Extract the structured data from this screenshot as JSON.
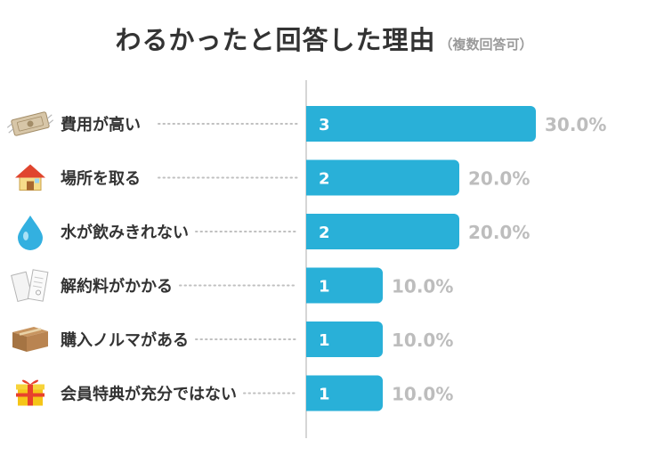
{
  "chart_data": {
    "type": "bar",
    "orientation": "horizontal",
    "title": "わるかったと回答した理由",
    "subtitle": "（複数回答可）",
    "categories": [
      "費用が高い",
      "場所を取る",
      "水が飲みきれない",
      "解約料がかかる",
      "購入ノルマがある",
      "会員特典が充分ではない"
    ],
    "values": [
      3,
      2,
      2,
      1,
      1,
      1
    ],
    "percent_labels": [
      "30.0%",
      "20.0%",
      "20.0%",
      "10.0%",
      "10.0%",
      "10.0%"
    ],
    "icons": [
      "money-icon",
      "house-icon",
      "water-drop-icon",
      "contract-document-icon",
      "cardboard-box-icon",
      "gift-box-icon"
    ],
    "xlim": [
      0,
      3
    ],
    "grid": false,
    "legend": "none",
    "colors": {
      "bar": "#29b0d8",
      "axis": "#c8c8c8",
      "percent": "#bdbdbd",
      "label": "#333333"
    }
  }
}
